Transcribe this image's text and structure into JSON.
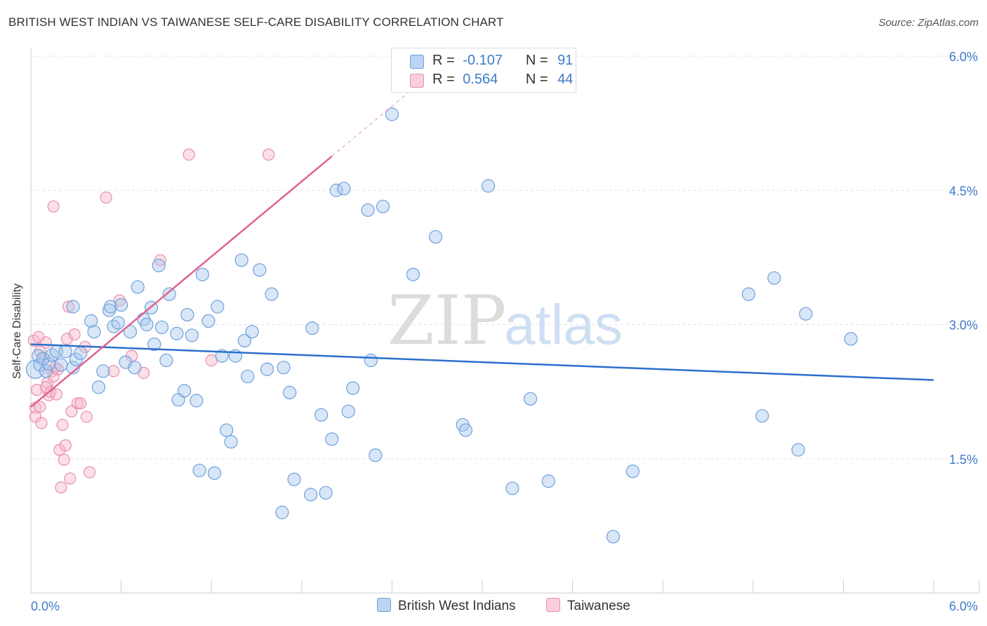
{
  "header": {
    "title": "BRITISH WEST INDIAN VS TAIWANESE SELF-CARE DISABILITY CORRELATION CHART",
    "source": "Source: ZipAtlas.com"
  },
  "watermark": {
    "zip": "ZIP",
    "atlas": "atlas"
  },
  "legend": {
    "rows": [
      {
        "r_label": "R =",
        "r_value": "-0.107",
        "n_label": "N =",
        "n_value": "91"
      },
      {
        "r_label": "R =",
        "r_value": "0.564",
        "n_label": "N =",
        "n_value": "44"
      }
    ]
  },
  "bottom_legend": {
    "series1": "British West Indians",
    "series2": "Taiwanese"
  },
  "colors": {
    "series1_fill": "#a9c8ee",
    "series1_stroke": "#6fa0dc",
    "series1_line": "#2c6fcc",
    "series2_fill": "#f6b9cb",
    "series2_stroke": "#e98fab",
    "series2_line": "#e0628f",
    "tick_label": "#3d7cc9",
    "grid": "#e3e3e3"
  },
  "chart_data": {
    "type": "scatter",
    "title": "BRITISH WEST INDIAN VS TAIWANESE SELF-CARE DISABILITY CORRELATION CHART",
    "xlabel": "",
    "ylabel": "Self-Care Disability",
    "xlim": [
      0,
      6.0
    ],
    "ylim": [
      0,
      6.0
    ],
    "x_tick_labels": [
      "0.0%",
      "6.0%"
    ],
    "y_tick_values": [
      1.5,
      3.0,
      4.5,
      6.0
    ],
    "y_tick_labels": [
      "1.5%",
      "3.0%",
      "4.5%",
      "6.0%"
    ],
    "grid": true,
    "legend_position": "top-center",
    "series": [
      {
        "name": "British West Indians",
        "r": -0.107,
        "n": 91,
        "trend": {
          "x": [
            0.0,
            6.0
          ],
          "y": [
            2.78,
            2.38
          ]
        },
        "points": [
          [
            0.03,
            2.5
          ],
          [
            0.05,
            2.65
          ],
          [
            0.06,
            2.55
          ],
          [
            0.08,
            2.62
          ],
          [
            0.1,
            2.48
          ],
          [
            0.12,
            2.56
          ],
          [
            0.14,
            2.66
          ],
          [
            0.17,
            2.7
          ],
          [
            0.2,
            2.55
          ],
          [
            0.23,
            2.7
          ],
          [
            0.28,
            2.52
          ],
          [
            0.3,
            2.61
          ],
          [
            0.33,
            2.68
          ],
          [
            0.28,
            3.2
          ],
          [
            0.4,
            3.04
          ],
          [
            0.42,
            2.92
          ],
          [
            0.45,
            2.3
          ],
          [
            0.48,
            2.48
          ],
          [
            0.52,
            3.16
          ],
          [
            0.53,
            3.2
          ],
          [
            0.55,
            2.98
          ],
          [
            0.58,
            3.02
          ],
          [
            0.6,
            3.22
          ],
          [
            0.63,
            2.58
          ],
          [
            0.66,
            2.92
          ],
          [
            0.69,
            2.52
          ],
          [
            0.71,
            3.42
          ],
          [
            0.75,
            3.06
          ],
          [
            0.77,
            3.0
          ],
          [
            0.8,
            3.19
          ],
          [
            0.82,
            2.78
          ],
          [
            0.85,
            3.66
          ],
          [
            0.87,
            2.97
          ],
          [
            0.9,
            2.6
          ],
          [
            0.92,
            3.34
          ],
          [
            0.97,
            2.9
          ],
          [
            0.98,
            2.16
          ],
          [
            1.02,
            2.26
          ],
          [
            1.04,
            3.11
          ],
          [
            1.07,
            2.88
          ],
          [
            1.1,
            2.15
          ],
          [
            1.12,
            1.37
          ],
          [
            1.14,
            3.56
          ],
          [
            1.18,
            3.04
          ],
          [
            1.22,
            1.34
          ],
          [
            1.24,
            3.2
          ],
          [
            1.27,
            2.65
          ],
          [
            1.3,
            1.82
          ],
          [
            1.33,
            1.69
          ],
          [
            1.36,
            2.65
          ],
          [
            1.4,
            3.72
          ],
          [
            1.42,
            2.82
          ],
          [
            1.44,
            2.42
          ],
          [
            1.47,
            2.92
          ],
          [
            1.52,
            3.61
          ],
          [
            1.57,
            2.5
          ],
          [
            1.6,
            3.34
          ],
          [
            1.67,
            0.9
          ],
          [
            1.68,
            2.52
          ],
          [
            1.72,
            2.24
          ],
          [
            1.75,
            1.27
          ],
          [
            1.86,
            1.1
          ],
          [
            1.87,
            2.96
          ],
          [
            1.93,
            1.99
          ],
          [
            1.96,
            1.12
          ],
          [
            2.0,
            1.72
          ],
          [
            2.03,
            4.5
          ],
          [
            2.08,
            4.52
          ],
          [
            2.11,
            2.03
          ],
          [
            2.14,
            2.29
          ],
          [
            2.24,
            4.28
          ],
          [
            2.26,
            2.6
          ],
          [
            2.29,
            1.54
          ],
          [
            2.34,
            4.32
          ],
          [
            2.4,
            5.35
          ],
          [
            2.54,
            3.56
          ],
          [
            2.69,
            3.98
          ],
          [
            2.87,
            1.88
          ],
          [
            2.89,
            1.82
          ],
          [
            3.04,
            4.55
          ],
          [
            3.2,
            1.17
          ],
          [
            3.32,
            2.17
          ],
          [
            3.44,
            1.25
          ],
          [
            3.87,
            0.63
          ],
          [
            4.0,
            1.36
          ],
          [
            4.77,
            3.34
          ],
          [
            4.86,
            1.98
          ],
          [
            4.94,
            3.52
          ],
          [
            5.1,
            1.6
          ],
          [
            5.15,
            3.12
          ],
          [
            5.45,
            2.84
          ]
        ]
      },
      {
        "name": "Taiwanese",
        "r": 0.564,
        "n": 44,
        "trend": {
          "x": [
            0.0,
            2.0
          ],
          "y": [
            2.08,
            4.88
          ]
        },
        "trend_dashed": {
          "x": [
            2.0,
            2.55
          ],
          "y": [
            4.88,
            5.65
          ]
        },
        "points": [
          [
            0.02,
            2.82
          ],
          [
            0.03,
            2.07
          ],
          [
            0.03,
            1.97
          ],
          [
            0.04,
            2.27
          ],
          [
            0.05,
            2.86
          ],
          [
            0.06,
            2.7
          ],
          [
            0.06,
            2.08
          ],
          [
            0.07,
            1.9
          ],
          [
            0.09,
            2.62
          ],
          [
            0.1,
            2.8
          ],
          [
            0.11,
            2.35
          ],
          [
            0.12,
            2.21
          ],
          [
            0.13,
            2.25
          ],
          [
            0.14,
            2.48
          ],
          [
            0.15,
            2.42
          ],
          [
            0.16,
            2.52
          ],
          [
            0.17,
            2.22
          ],
          [
            0.18,
            2.5
          ],
          [
            0.19,
            1.6
          ],
          [
            0.2,
            1.18
          ],
          [
            0.21,
            1.88
          ],
          [
            0.22,
            1.49
          ],
          [
            0.23,
            1.65
          ],
          [
            0.24,
            2.84
          ],
          [
            0.25,
            3.2
          ],
          [
            0.26,
            1.28
          ],
          [
            0.27,
            2.03
          ],
          [
            0.29,
            2.89
          ],
          [
            0.31,
            2.12
          ],
          [
            0.33,
            2.12
          ],
          [
            0.36,
            2.75
          ],
          [
            0.37,
            1.97
          ],
          [
            0.39,
            1.35
          ],
          [
            0.5,
            4.42
          ],
          [
            0.55,
            2.48
          ],
          [
            0.59,
            3.27
          ],
          [
            0.67,
            2.65
          ],
          [
            0.75,
            2.46
          ],
          [
            0.86,
            3.72
          ],
          [
            1.05,
            4.9
          ],
          [
            1.2,
            2.6
          ],
          [
            1.58,
            4.9
          ],
          [
            0.15,
            4.32
          ],
          [
            0.1,
            2.3
          ]
        ]
      }
    ]
  }
}
